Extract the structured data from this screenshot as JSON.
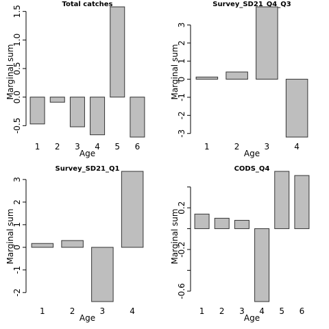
{
  "chart_data": [
    {
      "type": "bar",
      "title": "Total catches",
      "xlabel": "Age",
      "ylabel": "Marginal sum",
      "categories": [
        "1",
        "2",
        "3",
        "4",
        "5",
        "6"
      ],
      "values": [
        -0.47,
        -0.09,
        -0.52,
        -0.66,
        1.58,
        -0.7
      ],
      "ylim": [
        -0.7,
        1.58
      ],
      "yticks": [
        "-0.5",
        "0.0",
        "0.5",
        "1.0",
        "1.5"
      ],
      "ytick_values": [
        -0.5,
        0,
        0.5,
        1.0,
        1.5
      ],
      "bar_fill": "#bebebe",
      "grid": false,
      "legend": "none"
    },
    {
      "type": "bar",
      "title": "Survey_SD21_Q4_Q3",
      "xlabel": "Age",
      "ylabel": "Marginal sum",
      "categories": [
        "1",
        "2",
        "3",
        "4"
      ],
      "values": [
        0.12,
        0.4,
        4.0,
        -3.2
      ],
      "ylim": [
        -3.2,
        4.0
      ],
      "yticks": [
        "-3",
        "-2",
        "-1",
        "0",
        "1",
        "2",
        "3"
      ],
      "ytick_values": [
        -3,
        -2,
        -1,
        0,
        1,
        2,
        3
      ],
      "bar_fill": "#bebebe",
      "grid": false,
      "legend": "none"
    },
    {
      "type": "bar",
      "title": "Survey_SD21_Q1",
      "xlabel": "Age",
      "ylabel": "Marginal sum",
      "categories": [
        "1",
        "2",
        "3",
        "4"
      ],
      "values": [
        0.17,
        0.3,
        -2.4,
        3.36
      ],
      "ylim": [
        -2.4,
        3.36
      ],
      "yticks": [
        "-2",
        "-1",
        "0",
        "1",
        "2",
        "3"
      ],
      "ytick_values": [
        -2,
        -1,
        0,
        1,
        2,
        3
      ],
      "bar_fill": "#bebebe",
      "grid": false,
      "legend": "none"
    },
    {
      "type": "bar",
      "title": "CODS_Q4",
      "xlabel": "Age",
      "ylabel": "Marginal sum",
      "categories": [
        "1",
        "2",
        "3",
        "4",
        "5",
        "6"
      ],
      "values": [
        0.14,
        0.1,
        0.08,
        -0.7,
        0.55,
        0.51
      ],
      "ylim": [
        -0.7,
        0.55
      ],
      "yticks": [
        "-0.6",
        "-0.2",
        "0.2"
      ],
      "ytick_values": [
        -0.6,
        -0.2,
        0.2
      ],
      "extra_tick_values": [
        -0.4,
        0,
        0.4
      ],
      "bar_fill": "#bebebe",
      "grid": false,
      "legend": "none"
    }
  ]
}
